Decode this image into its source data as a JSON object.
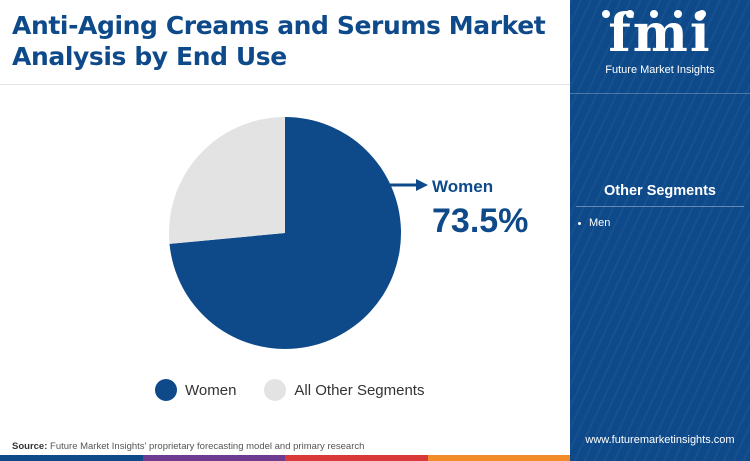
{
  "title_line1": "Anti-Aging Creams and Serums Market",
  "title_line2": "Analysis by End Use",
  "chart_data": {
    "type": "pie",
    "slices": [
      {
        "label": "Women",
        "value": 73.5,
        "color": "#0e4a8a"
      },
      {
        "label": "All Other Segments",
        "value": 26.5,
        "color": "#e3e3e3"
      }
    ],
    "callout": {
      "label": "Women",
      "value_text": "73.5%"
    },
    "legend_placement": "bottom"
  },
  "legend": [
    {
      "label": "Women",
      "color": "#0e4a8a"
    },
    {
      "label": "All Other Segments",
      "color": "#e3e3e3"
    }
  ],
  "source": {
    "prefix": "Source:",
    "text": "Future Market Insights' proprietary forecasting model and primary research"
  },
  "sidebar": {
    "logo_text": "fmi",
    "logo_subtitle": "Future Market Insights",
    "heading": "Other Segments",
    "items": [
      "Men"
    ],
    "url": "www.futuremarketinsights.com"
  },
  "colors": {
    "brand": "#0e4a8a",
    "other": "#e3e3e3",
    "bottom_bar": [
      "#0e4a8a",
      "#6d3b8f",
      "#d93838",
      "#f28c28"
    ]
  }
}
